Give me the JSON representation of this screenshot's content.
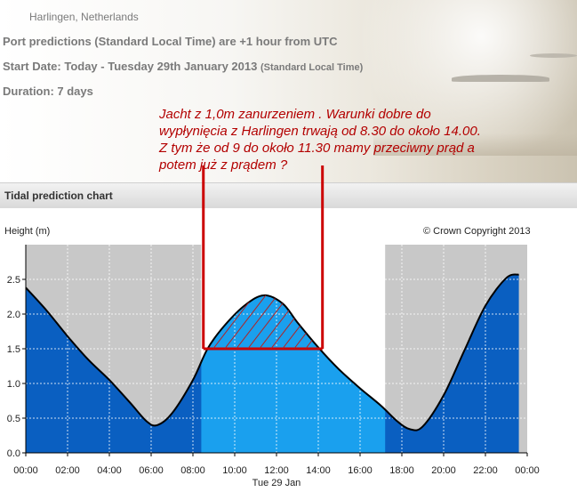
{
  "header": {
    "location": "Harlingen, Netherlands",
    "line1": "Port predictions (Standard Local Time) are +1 hour from UTC",
    "line2_main": "Start Date: Today - Tuesday 29th January 2013",
    "line2_small": "(Standard Local Time)",
    "line3": "Duration: 7 days"
  },
  "annotation": {
    "lines": [
      "Jacht z 1,0m zanurzeniem . Warunki dobre do",
      "wypłynięcia z Harlingen trwają od 8.30 do około 14.00.",
      "Z tym że od 9 do około 11.30 mamy przeciwny prąd a",
      "potem już z prądem ?"
    ],
    "color": "#cc0000",
    "window_start_hour": 8.5,
    "window_end_hour": 14.2,
    "depth_level": 1.5
  },
  "panel": {
    "title": "Tidal prediction chart",
    "ylabel": "Height (m)",
    "copyright": "© Crown Copyright 2013"
  },
  "chart_data": {
    "type": "area",
    "title": "Tidal prediction chart",
    "ylabel": "Height (m)",
    "xlabel": "Tue 29 Jan",
    "x_unit": "hour of day",
    "xlim": [
      0,
      24
    ],
    "ylim": [
      0,
      3
    ],
    "x_ticks": [
      "00:00",
      "02:00",
      "04:00",
      "06:00",
      "08:00",
      "10:00",
      "12:00",
      "14:00",
      "16:00",
      "18:00",
      "20:00",
      "22:00",
      "00:00"
    ],
    "y_ticks": [
      "0.0",
      "0.5",
      "1.0",
      "1.5",
      "2.0",
      "2.5"
    ],
    "series": [
      {
        "x": [
          0,
          1,
          2,
          3,
          4,
          5,
          5.8,
          6.3,
          7,
          8,
          8.7,
          9.5,
          10.5,
          11.4,
          12.3,
          13,
          14,
          15,
          16,
          17,
          17.8,
          18.4,
          19,
          20,
          21,
          22,
          23,
          23.6
        ],
        "y": [
          2.38,
          2.05,
          1.68,
          1.34,
          1.05,
          0.72,
          0.45,
          0.4,
          0.57,
          1.05,
          1.5,
          1.83,
          2.13,
          2.27,
          2.15,
          1.88,
          1.52,
          1.2,
          0.93,
          0.68,
          0.45,
          0.34,
          0.38,
          0.83,
          1.48,
          2.12,
          2.52,
          2.57
        ]
      }
    ],
    "daylight": {
      "start": 8.4,
      "end": 17.2
    },
    "colors": {
      "night_bg": "#c8c8c8",
      "day_bg": "#ffffff",
      "night_fill": "#0a5fc1",
      "day_fill": "#1aa0ee",
      "line": "#000000",
      "grid": "#ffffff"
    },
    "grid": true
  }
}
